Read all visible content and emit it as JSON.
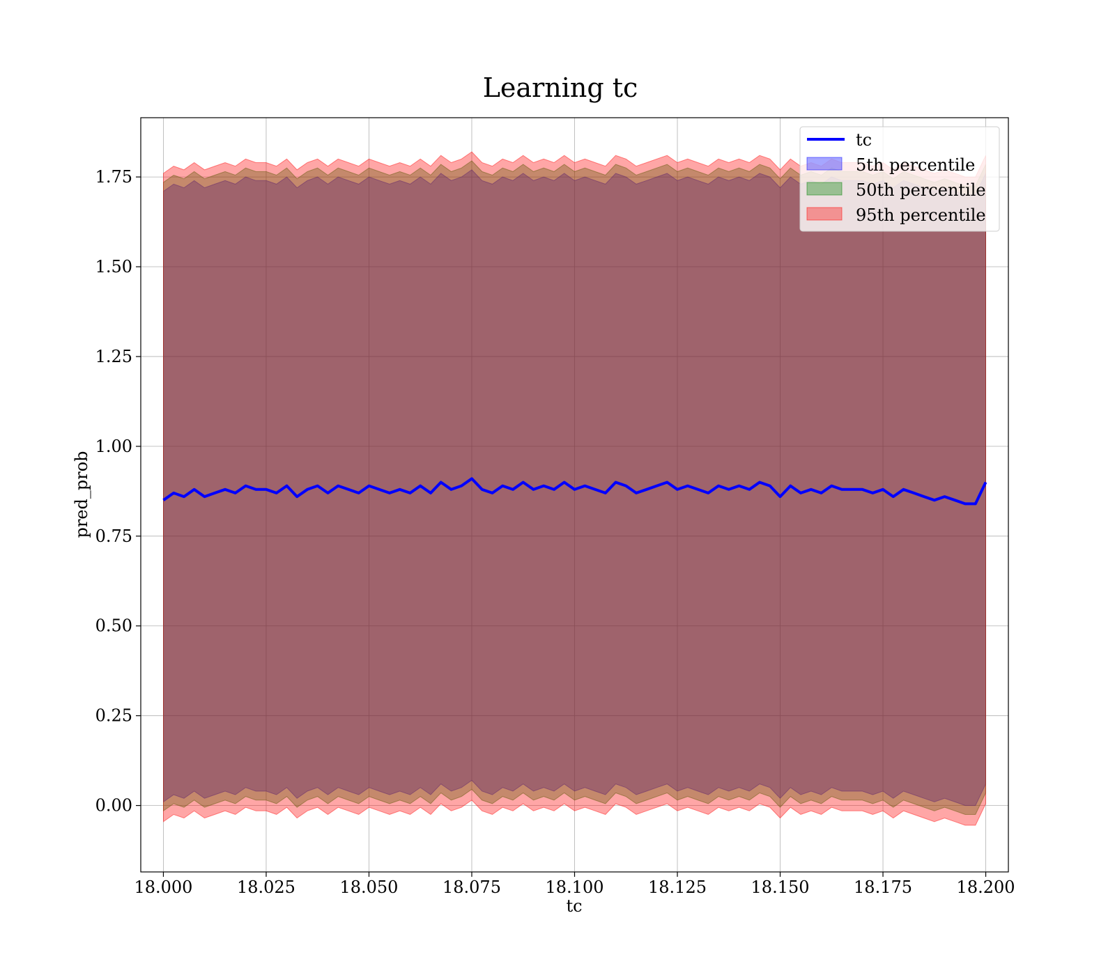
{
  "chart_data": {
    "type": "line",
    "title": "Learning tc",
    "xlabel": "tc",
    "ylabel": "pred_prob",
    "xlim": [
      17.9945,
      18.2055
    ],
    "ylim": [
      -0.185,
      1.915
    ],
    "xticks": [
      18.0,
      18.025,
      18.05,
      18.075,
      18.1,
      18.125,
      18.15,
      18.175,
      18.2
    ],
    "xtick_labels": [
      "18.000",
      "18.025",
      "18.050",
      "18.075",
      "18.100",
      "18.125",
      "18.150",
      "18.175",
      "18.200"
    ],
    "yticks": [
      0.0,
      0.25,
      0.5,
      0.75,
      1.0,
      1.25,
      1.5,
      1.75
    ],
    "ytick_labels": [
      "0.00",
      "0.25",
      "0.50",
      "0.75",
      "1.00",
      "1.25",
      "1.50",
      "1.75"
    ],
    "grid": true,
    "legend_position": "top-right",
    "x": [
      18.0,
      18.0025,
      18.005,
      18.0075,
      18.01,
      18.0125,
      18.015,
      18.0175,
      18.02,
      18.0225,
      18.025,
      18.0275,
      18.03,
      18.0325,
      18.035,
      18.0375,
      18.04,
      18.0425,
      18.045,
      18.0475,
      18.05,
      18.0525,
      18.055,
      18.0575,
      18.06,
      18.0625,
      18.065,
      18.0675,
      18.07,
      18.0725,
      18.075,
      18.0775,
      18.08,
      18.0825,
      18.085,
      18.0875,
      18.09,
      18.0925,
      18.095,
      18.0975,
      18.1,
      18.1025,
      18.105,
      18.1075,
      18.11,
      18.1125,
      18.115,
      18.1175,
      18.12,
      18.1225,
      18.125,
      18.1275,
      18.13,
      18.1325,
      18.135,
      18.1375,
      18.14,
      18.1425,
      18.145,
      18.1475,
      18.15,
      18.1525,
      18.155,
      18.1575,
      18.16,
      18.1625,
      18.165,
      18.1675,
      18.17,
      18.1725,
      18.175,
      18.1775,
      18.18,
      18.1825,
      18.185,
      18.1875,
      18.19,
      18.1925,
      18.195,
      18.1975,
      18.2
    ],
    "series": [
      {
        "name": "tc",
        "color": "#0000ff",
        "values": [
          0.85,
          0.87,
          0.86,
          0.88,
          0.86,
          0.87,
          0.88,
          0.87,
          0.89,
          0.88,
          0.88,
          0.87,
          0.89,
          0.86,
          0.88,
          0.89,
          0.87,
          0.89,
          0.88,
          0.87,
          0.89,
          0.88,
          0.87,
          0.88,
          0.87,
          0.89,
          0.87,
          0.9,
          0.88,
          0.89,
          0.91,
          0.88,
          0.87,
          0.89,
          0.88,
          0.9,
          0.88,
          0.89,
          0.88,
          0.9,
          0.88,
          0.89,
          0.88,
          0.87,
          0.9,
          0.89,
          0.87,
          0.88,
          0.89,
          0.9,
          0.88,
          0.89,
          0.88,
          0.87,
          0.89,
          0.88,
          0.89,
          0.88,
          0.9,
          0.89,
          0.86,
          0.89,
          0.87,
          0.88,
          0.87,
          0.89,
          0.88,
          0.88,
          0.88,
          0.87,
          0.88,
          0.86,
          0.88,
          0.87,
          0.86,
          0.85,
          0.86,
          0.85,
          0.84,
          0.84,
          0.9
        ]
      }
    ],
    "bands": [
      {
        "name": "5th percentile",
        "color": "#0000ff",
        "opacity": 0.35,
        "lower_offset": -0.84,
        "upper_offset": 0.86
      },
      {
        "name": "50th percentile",
        "color": "#008000",
        "opacity": 0.35,
        "lower_offset": -0.865,
        "upper_offset": 0.885
      },
      {
        "name": "95th percentile",
        "color": "#ff0000",
        "opacity": 0.35,
        "lower_offset": -0.895,
        "upper_offset": 0.91
      }
    ]
  }
}
